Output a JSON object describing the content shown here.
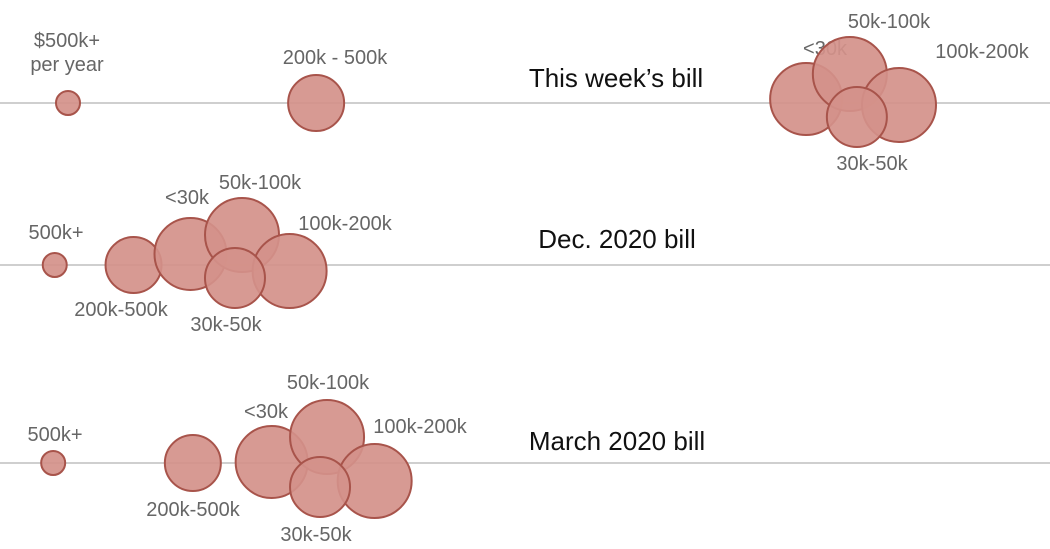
{
  "chart_data": {
    "type": "bubble-strip",
    "colors": {
      "bubble_fill": "#d4918a",
      "bubble_stroke": "#a8544b",
      "axis_line": "#cfcfcf",
      "label_text": "#666666",
      "title_text": "#111111"
    },
    "rows": [
      {
        "title": "This week’s bill",
        "groups": [
          {
            "label": "$500k+",
            "label_line2": "per year",
            "value": 0.7,
            "size": 1
          },
          {
            "label": "200k - 500k",
            "value": 32.5,
            "size": 2.2
          },
          {
            "label": "<30k",
            "value": 95.3,
            "size": 3.0
          },
          {
            "label": "50k-100k",
            "value": 100.9,
            "size": 3.1
          },
          {
            "label": "100k-200k",
            "value": 107.2,
            "size": 3.1
          },
          {
            "label": "30k-50k",
            "value": 101.8,
            "size": 2.5
          }
        ]
      },
      {
        "title": "Dec. 2020 bill",
        "groups": [
          {
            "label": "500k+",
            "value": -1.0,
            "size": 1
          },
          {
            "label": "200k-500k",
            "value": 9.1,
            "size": 2.2
          },
          {
            "label": "<30k",
            "value": 16.4,
            "size": 3.0
          },
          {
            "label": "50k-100k",
            "value": 23.0,
            "size": 3.1
          },
          {
            "label": "100k-200k",
            "value": 29.1,
            "size": 3.1
          },
          {
            "label": "30k-50k",
            "value": 22.1,
            "size": 2.5
          }
        ]
      },
      {
        "title": "March 2020 bill",
        "groups": [
          {
            "label": "500k+",
            "value": -1.2,
            "size": 1
          },
          {
            "label": "200k-500k",
            "value": 16.7,
            "size": 2.2
          },
          {
            "label": "<30k",
            "value": 26.8,
            "size": 3.0
          },
          {
            "label": "50k-100k",
            "value": 33.9,
            "size": 3.1
          },
          {
            "label": "100k-200k",
            "value": 40.0,
            "size": 3.1
          },
          {
            "label": "30k-50k",
            "value": 33.0,
            "size": 2.5
          }
        ]
      }
    ]
  }
}
